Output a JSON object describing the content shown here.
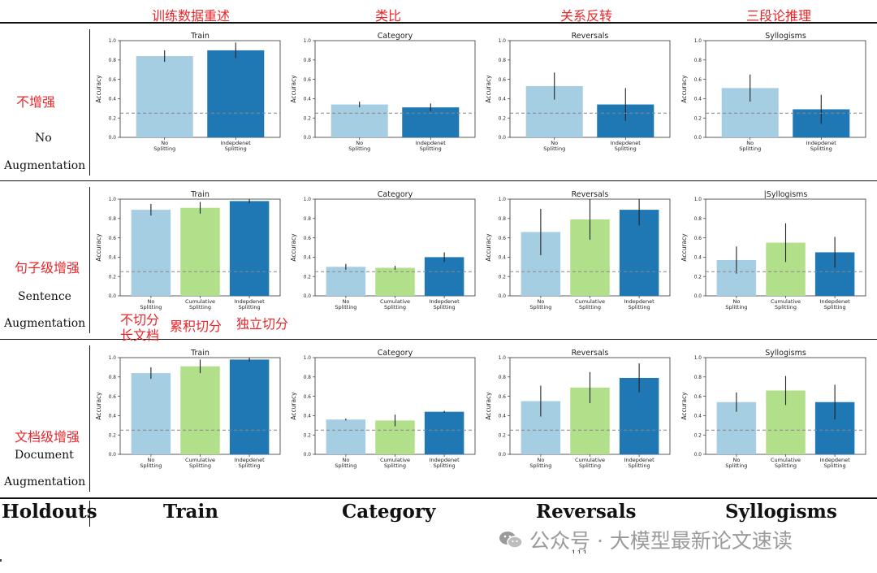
{
  "column_headers_cn": [
    "训练数据重述",
    "类比",
    "关系反转",
    "三段论推理"
  ],
  "rows": [
    {
      "cn": "不增强",
      "en1": "No",
      "en2": "Augmentation"
    },
    {
      "cn": "句子级增强",
      "en1": "Sentence",
      "en2": "Augmentation"
    },
    {
      "cn": "文档级增强",
      "en1": "Document",
      "en2": "Augmentation"
    }
  ],
  "annotations_cn": {
    "no_split_line1": "不切分",
    "no_split_line2": "长文档",
    "cumulative": "累积切分",
    "independent": "独立切分"
  },
  "footer": {
    "holdouts": "Holdouts",
    "cols": [
      "Train",
      "Category",
      "Reversals",
      "Syllogisms"
    ]
  },
  "watermark": {
    "text": "公众号 · 大模型最新论文速读",
    "logo": "wechat-logo-icon",
    "partial_page_number": "111"
  },
  "colors": {
    "no_split": "#a6cee3",
    "cumulative": "#b2df8a",
    "independent": "#1f78b4",
    "baseline": "#888888",
    "annotation_red": "#e8262a"
  },
  "chart_data": [
    {
      "type": "bar",
      "row": 0,
      "title": "Train",
      "ylabel": "Accuracy",
      "ylim": [
        0,
        1.0
      ],
      "yticks": [
        "0.0",
        "0.2",
        "0.4",
        "0.6",
        "0.8",
        "1.0"
      ],
      "categories": [
        [
          "No",
          "Splitting"
        ],
        [
          "Indepdenet",
          "Splitting"
        ]
      ],
      "series": [
        {
          "values": [
            0.84,
            0.9
          ],
          "err": [
            0.06,
            0.08
          ]
        }
      ],
      "baseline": 0.25
    },
    {
      "type": "bar",
      "row": 0,
      "title": "Category",
      "ylabel": "Accuracy",
      "ylim": [
        0,
        1.0
      ],
      "yticks": [
        "0.0",
        "0.2",
        "0.4",
        "0.6",
        "0.8",
        "1.0"
      ],
      "categories": [
        [
          "No",
          "Splitting"
        ],
        [
          "Indepdenet",
          "Splitting"
        ]
      ],
      "series": [
        {
          "values": [
            0.34,
            0.31
          ],
          "err": [
            0.03,
            0.04
          ]
        }
      ],
      "baseline": 0.25
    },
    {
      "type": "bar",
      "row": 0,
      "title": "Reversals",
      "ylabel": "Accuracy",
      "ylim": [
        0,
        1.0
      ],
      "yticks": [
        "0.0",
        "0.2",
        "0.4",
        "0.6",
        "0.8",
        "1.0"
      ],
      "categories": [
        [
          "No",
          "Splitting"
        ],
        [
          "Indepdenet",
          "Splitting"
        ]
      ],
      "series": [
        {
          "values": [
            0.53,
            0.34
          ],
          "err": [
            0.14,
            0.17
          ]
        }
      ],
      "baseline": 0.25
    },
    {
      "type": "bar",
      "row": 0,
      "title": "Syllogisms",
      "ylabel": "Accuracy",
      "ylim": [
        0,
        1.0
      ],
      "yticks": [
        "0.0",
        "0.2",
        "0.4",
        "0.6",
        "0.8",
        "1.0"
      ],
      "categories": [
        [
          "No",
          "Splitting"
        ],
        [
          "Indepdenet",
          "Splitting"
        ]
      ],
      "series": [
        {
          "values": [
            0.51,
            0.29
          ],
          "err": [
            0.14,
            0.15
          ]
        }
      ],
      "baseline": 0.25
    },
    {
      "type": "bar",
      "row": 1,
      "title": "Train",
      "ylabel": "Accuracy",
      "ylim": [
        0,
        1.0
      ],
      "yticks": [
        "0.0",
        "0.2",
        "0.4",
        "0.6",
        "0.8",
        "1.0"
      ],
      "categories": [
        [
          "No",
          "Splitting"
        ],
        [
          "Cumulative",
          "Splitting"
        ],
        [
          "Indepdenet",
          "Splitting"
        ]
      ],
      "series": [
        {
          "values": [
            0.89,
            0.91,
            0.98
          ],
          "err": [
            0.06,
            0.06,
            0.02
          ]
        }
      ],
      "baseline": 0.25
    },
    {
      "type": "bar",
      "row": 1,
      "title": "Category",
      "ylabel": "Accuracy",
      "ylim": [
        0,
        1.0
      ],
      "yticks": [
        "0.0",
        "0.2",
        "0.4",
        "0.6",
        "0.8",
        "1.0"
      ],
      "categories": [
        [
          "No",
          "Splitting"
        ],
        [
          "Cumulative",
          "Splitting"
        ],
        [
          "Indepdenet",
          "Splitting"
        ]
      ],
      "series": [
        {
          "values": [
            0.3,
            0.29,
            0.4
          ],
          "err": [
            0.03,
            0.02,
            0.05
          ]
        }
      ],
      "baseline": 0.25
    },
    {
      "type": "bar",
      "row": 1,
      "title": "Reversals",
      "ylabel": "Accuracy",
      "ylim": [
        0,
        1.0
      ],
      "yticks": [
        "0.0",
        "0.2",
        "0.4",
        "0.6",
        "0.8",
        "1.0"
      ],
      "categories": [
        [
          "No",
          "Splitting"
        ],
        [
          "Cumulative",
          "Splitting"
        ],
        [
          "Indepdenet",
          "Splitting"
        ]
      ],
      "series": [
        {
          "values": [
            0.66,
            0.79,
            0.89
          ],
          "err": [
            0.24,
            0.21,
            0.16
          ]
        }
      ],
      "baseline": 0.25
    },
    {
      "type": "bar",
      "row": 1,
      "title": "|Syllogisms",
      "ylabel": "Accuracy",
      "ylim": [
        0,
        1.0
      ],
      "yticks": [
        "0.0",
        "0.2",
        "0.4",
        "0.6",
        "0.8",
        "1.0"
      ],
      "categories": [
        [
          "No",
          "Splitting"
        ],
        [
          "Cumulative",
          "Splitting"
        ],
        [
          "Indepdenet",
          "Splitting"
        ]
      ],
      "series": [
        {
          "values": [
            0.37,
            0.55,
            0.45
          ],
          "err": [
            0.14,
            0.2,
            0.16
          ]
        }
      ],
      "baseline": 0.25
    },
    {
      "type": "bar",
      "row": 2,
      "title": "Train",
      "ylabel": "Accuracy",
      "ylim": [
        0,
        1.0
      ],
      "yticks": [
        "0.0",
        "0.2",
        "0.4",
        "0.6",
        "0.8",
        "1.0"
      ],
      "categories": [
        [
          "No",
          "Splitting"
        ],
        [
          "Cumulative",
          "Splitting"
        ],
        [
          "Indepdenet",
          "Splitting"
        ]
      ],
      "series": [
        {
          "values": [
            0.84,
            0.91,
            0.98
          ],
          "err": [
            0.06,
            0.07,
            0.02
          ]
        }
      ],
      "baseline": 0.25
    },
    {
      "type": "bar",
      "row": 2,
      "title": "Category",
      "ylabel": "Accuracy",
      "ylim": [
        0,
        1.0
      ],
      "yticks": [
        "0.0",
        "0.2",
        "0.4",
        "0.6",
        "0.8",
        "1.0"
      ],
      "categories": [
        [
          "No",
          "Splitting"
        ],
        [
          "Cumulative",
          "Splitting"
        ],
        [
          "Indepdenet",
          "Splitting"
        ]
      ],
      "series": [
        {
          "values": [
            0.36,
            0.35,
            0.44
          ],
          "err": [
            0.01,
            0.06,
            0.01
          ]
        }
      ],
      "baseline": 0.25
    },
    {
      "type": "bar",
      "row": 2,
      "title": "Reversals",
      "ylabel": "Accuracy",
      "ylim": [
        0,
        1.0
      ],
      "yticks": [
        "0.0",
        "0.2",
        "0.4",
        "0.6",
        "0.8",
        "1.0"
      ],
      "categories": [
        [
          "No",
          "Splitting"
        ],
        [
          "Cumulative",
          "Splitting"
        ],
        [
          "Indepdenet",
          "Splitting"
        ]
      ],
      "series": [
        {
          "values": [
            0.55,
            0.69,
            0.79
          ],
          "err": [
            0.16,
            0.16,
            0.15
          ]
        }
      ],
      "baseline": 0.25
    },
    {
      "type": "bar",
      "row": 2,
      "title": "Syllogisms",
      "ylabel": "Accuracy",
      "ylim": [
        0,
        1.0
      ],
      "yticks": [
        "0.0",
        "0.2",
        "0.4",
        "0.6",
        "0.8",
        "1.0"
      ],
      "categories": [
        [
          "No",
          "Splitting"
        ],
        [
          "Cumulative",
          "Splitting"
        ],
        [
          "Indepdenet",
          "Splitting"
        ]
      ],
      "series": [
        {
          "values": [
            0.54,
            0.66,
            0.54
          ],
          "err": [
            0.1,
            0.15,
            0.18
          ]
        }
      ],
      "baseline": 0.25
    }
  ]
}
